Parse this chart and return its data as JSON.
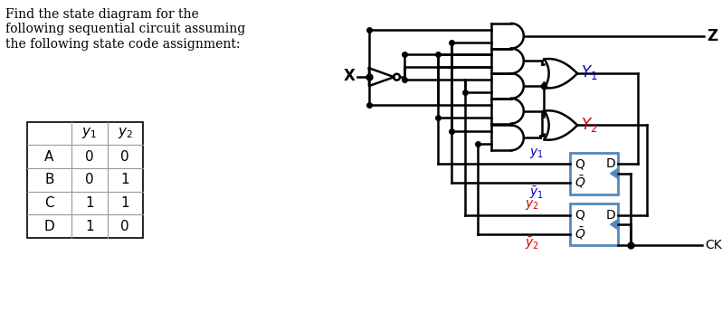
{
  "title_text": "Find the state diagram for the\nfollowing sequential circuit assuming\nthe following state code assignment:",
  "table_rows": [
    [
      "A",
      "0",
      "0"
    ],
    [
      "B",
      "0",
      "1"
    ],
    [
      "C",
      "1",
      "1"
    ],
    [
      "D",
      "1",
      "0"
    ]
  ],
  "black": "#000000",
  "blue": "#0000bb",
  "red": "#cc0000",
  "ff_blue": "#5588bb",
  "bg": "#ffffff",
  "lw": 1.8
}
